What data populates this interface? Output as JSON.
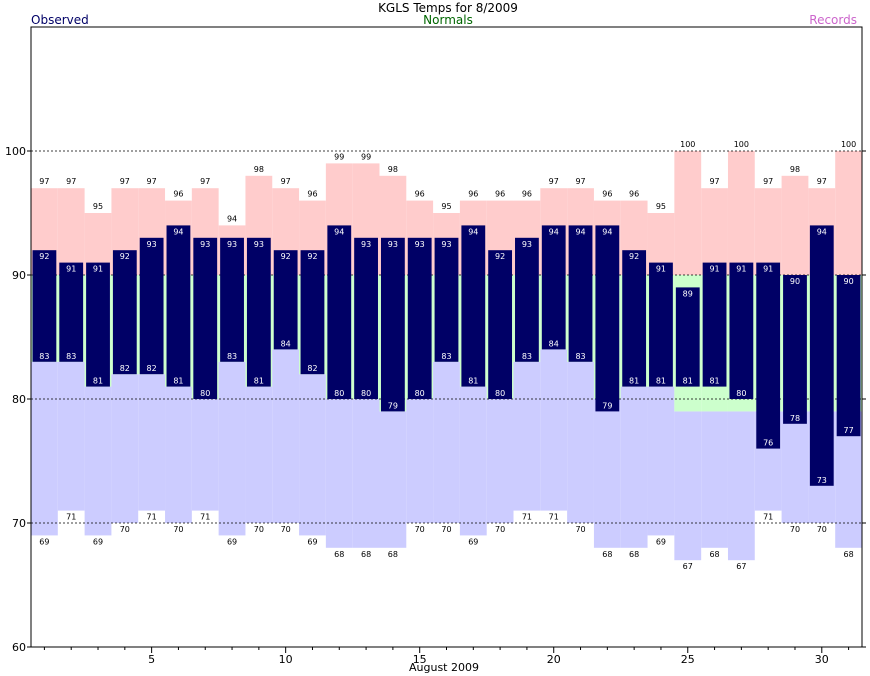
{
  "chart_data": {
    "type": "bar",
    "title": "KGLS Temps for 8/2009",
    "xlabel": "August 2009",
    "ylabel": "",
    "ylim": [
      60,
      110
    ],
    "xlim": [
      0.5,
      31.5
    ],
    "yticks": [
      60,
      70,
      80,
      90,
      100
    ],
    "xticks": [
      5,
      10,
      15,
      20,
      25,
      30
    ],
    "grid": "dashed at 70, 80, 90, 100",
    "legend": {
      "observed": "Observed",
      "normals": "Normals",
      "records": "Records"
    },
    "colors": {
      "observed": "#000066",
      "normals": "#ccffcc",
      "records_high": "#ffcccc",
      "records_low": "#ccccff",
      "observed_label": "#000066",
      "normals_label": "#006600",
      "records_label": "#cc66cc"
    },
    "days": [
      1,
      2,
      3,
      4,
      5,
      6,
      7,
      8,
      9,
      10,
      11,
      12,
      13,
      14,
      15,
      16,
      17,
      18,
      19,
      20,
      21,
      22,
      23,
      24,
      25,
      26,
      27,
      28,
      29,
      30,
      31
    ],
    "record_high": [
      97,
      97,
      95,
      97,
      97,
      96,
      97,
      94,
      98,
      97,
      96,
      99,
      99,
      98,
      96,
      95,
      96,
      96,
      96,
      97,
      97,
      96,
      96,
      95,
      100,
      97,
      100,
      97,
      98,
      97,
      100
    ],
    "record_low": [
      69,
      71,
      69,
      70,
      71,
      70,
      71,
      69,
      70,
      70,
      69,
      68,
      68,
      68,
      70,
      70,
      69,
      70,
      71,
      71,
      70,
      68,
      68,
      69,
      67,
      68,
      67,
      71,
      70,
      70,
      68
    ],
    "normal_high": [
      90,
      90,
      90,
      90,
      90,
      90,
      90,
      90,
      90,
      90,
      90,
      90,
      90,
      90,
      90,
      90,
      90,
      90,
      90,
      90,
      90,
      90,
      90,
      90,
      90,
      90,
      90,
      90,
      90,
      90,
      90
    ],
    "normal_low": [
      83,
      83,
      81,
      82,
      82,
      81,
      80,
      83,
      81,
      84,
      82,
      80,
      80,
      79,
      80,
      83,
      81,
      80,
      83,
      84,
      83,
      80,
      81,
      81,
      79,
      79,
      79,
      79,
      79,
      79,
      79
    ],
    "observed_high": [
      92,
      91,
      91,
      92,
      93,
      94,
      93,
      93,
      93,
      92,
      92,
      94,
      93,
      93,
      93,
      93,
      94,
      92,
      93,
      94,
      94,
      94,
      92,
      91,
      89,
      91,
      91,
      91,
      90,
      94,
      90
    ],
    "observed_low": [
      83,
      83,
      81,
      82,
      82,
      81,
      80,
      83,
      81,
      84,
      82,
      80,
      80,
      79,
      80,
      83,
      81,
      80,
      83,
      84,
      83,
      79,
      81,
      81,
      81,
      81,
      80,
      76,
      78,
      73,
      77
    ]
  }
}
